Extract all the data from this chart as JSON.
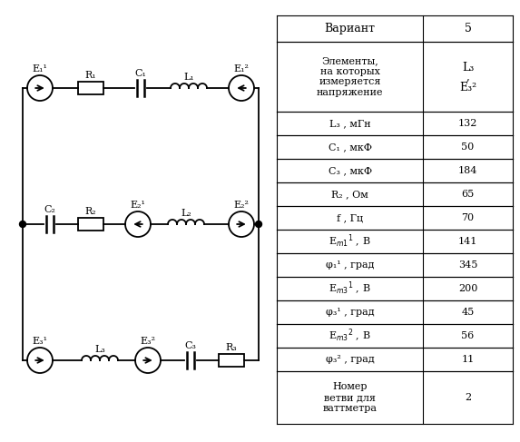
{
  "title": "",
  "bg_color": "#ffffff",
  "circuit": {
    "branch1": {
      "label_e1_1": "E₁¹",
      "label_r1": "R₁",
      "label_c1": "C₁",
      "label_l1": "L₁",
      "label_e1_2": "E₁²"
    },
    "branch2": {
      "label_c2": "C₂",
      "label_r2": "R₂",
      "label_e2_1": "E₂¹",
      "label_l2": "L₂",
      "label_e2_2": "E₂²"
    },
    "branch3": {
      "label_e3_1": "E₃¹",
      "label_l3": "L₃",
      "label_e3_2": "E₃²",
      "label_c3": "C₃",
      "label_r3": "R₃"
    }
  },
  "table": {
    "col_headers": [
      "Вариант",
      "5"
    ],
    "rows": [
      [
        "Элементы,\nна которых\nизмеряется\nнапряжение",
        "L₃\n,\nE₃²"
      ],
      [
        "L₃ , мГн",
        "132"
      ],
      [
        "C₁ , мкФ",
        "50"
      ],
      [
        "C₃ , мкФ",
        "184"
      ],
      [
        "R₂ , Ом",
        "65"
      ],
      [
        "f , Гц",
        "70"
      ],
      [
        "Eₘ₁¹ , В",
        "141"
      ],
      [
        "φ₁¹ , град",
        "345"
      ],
      [
        "Eₘ₃¹ , В",
        "200"
      ],
      [
        "φ₃¹ , град",
        "45"
      ],
      [
        "Eₘ₃² , В",
        "56"
      ],
      [
        "φ₃² , град",
        "11"
      ],
      [
        "Номер\nветви для\nваттметра",
        "2"
      ]
    ]
  }
}
